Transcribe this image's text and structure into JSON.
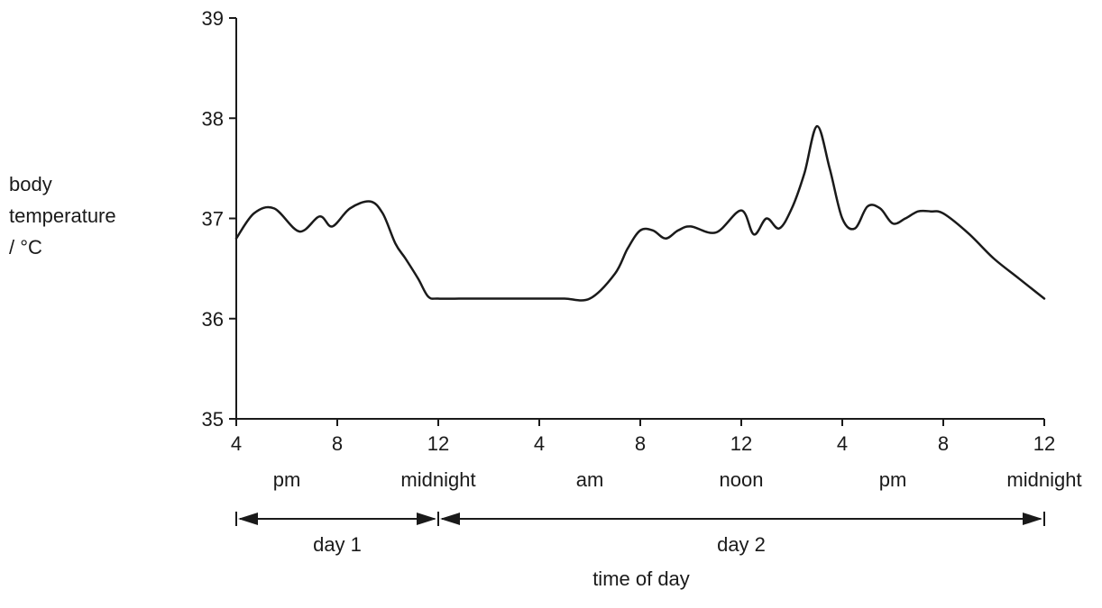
{
  "chart_data": {
    "type": "line",
    "ylabel": [
      "body",
      "temperature",
      "/ °C"
    ],
    "xlabel": "time of day",
    "ylim": [
      35,
      39
    ],
    "yticks": [
      35,
      36,
      37,
      38,
      39
    ],
    "xlim": [
      0,
      32
    ],
    "x_ticks": [
      {
        "x": 0,
        "label": "4"
      },
      {
        "x": 4,
        "label": "8"
      },
      {
        "x": 8,
        "label": "12"
      },
      {
        "x": 12,
        "label": "4"
      },
      {
        "x": 16,
        "label": "8"
      },
      {
        "x": 20,
        "label": "12"
      },
      {
        "x": 24,
        "label": "4"
      },
      {
        "x": 28,
        "label": "8"
      },
      {
        "x": 32,
        "label": "12"
      }
    ],
    "period_labels": [
      {
        "x": 2,
        "label": "pm"
      },
      {
        "x": 8,
        "label": "midnight"
      },
      {
        "x": 14,
        "label": "am"
      },
      {
        "x": 20,
        "label": "noon"
      },
      {
        "x": 26,
        "label": "pm"
      },
      {
        "x": 32,
        "label": "midnight"
      }
    ],
    "spans": [
      {
        "from": 0,
        "to": 8,
        "label": "day 1"
      },
      {
        "from": 8,
        "to": 32,
        "label": "day 2"
      }
    ],
    "series": [
      {
        "x": [
          0,
          0.7,
          1.5,
          2.5,
          3.3,
          3.8,
          4.5,
          5.3,
          5.8,
          6.3,
          6.7,
          7.2,
          7.6,
          8,
          9,
          10,
          11,
          12,
          13,
          14,
          15,
          15.5,
          16,
          16.5,
          17,
          17.5,
          18,
          19,
          20,
          20.5,
          21,
          21.5,
          22,
          22.5,
          23,
          23.5,
          24,
          24.5,
          25,
          25.5,
          26,
          26.5,
          27,
          27.5,
          28,
          29,
          30,
          31,
          32
        ],
        "y": [
          36.8,
          37.05,
          37.1,
          36.87,
          37.02,
          36.92,
          37.1,
          37.17,
          37.05,
          36.75,
          36.6,
          36.4,
          36.22,
          36.2,
          36.2,
          36.2,
          36.2,
          36.2,
          36.2,
          36.2,
          36.45,
          36.7,
          36.88,
          36.88,
          36.8,
          36.88,
          36.92,
          36.86,
          37.08,
          36.84,
          37.0,
          36.9,
          37.1,
          37.45,
          37.92,
          37.5,
          37.0,
          36.9,
          37.12,
          37.1,
          36.95,
          37.0,
          37.07,
          37.07,
          37.05,
          36.85,
          36.6,
          36.4,
          36.2
        ]
      }
    ]
  }
}
